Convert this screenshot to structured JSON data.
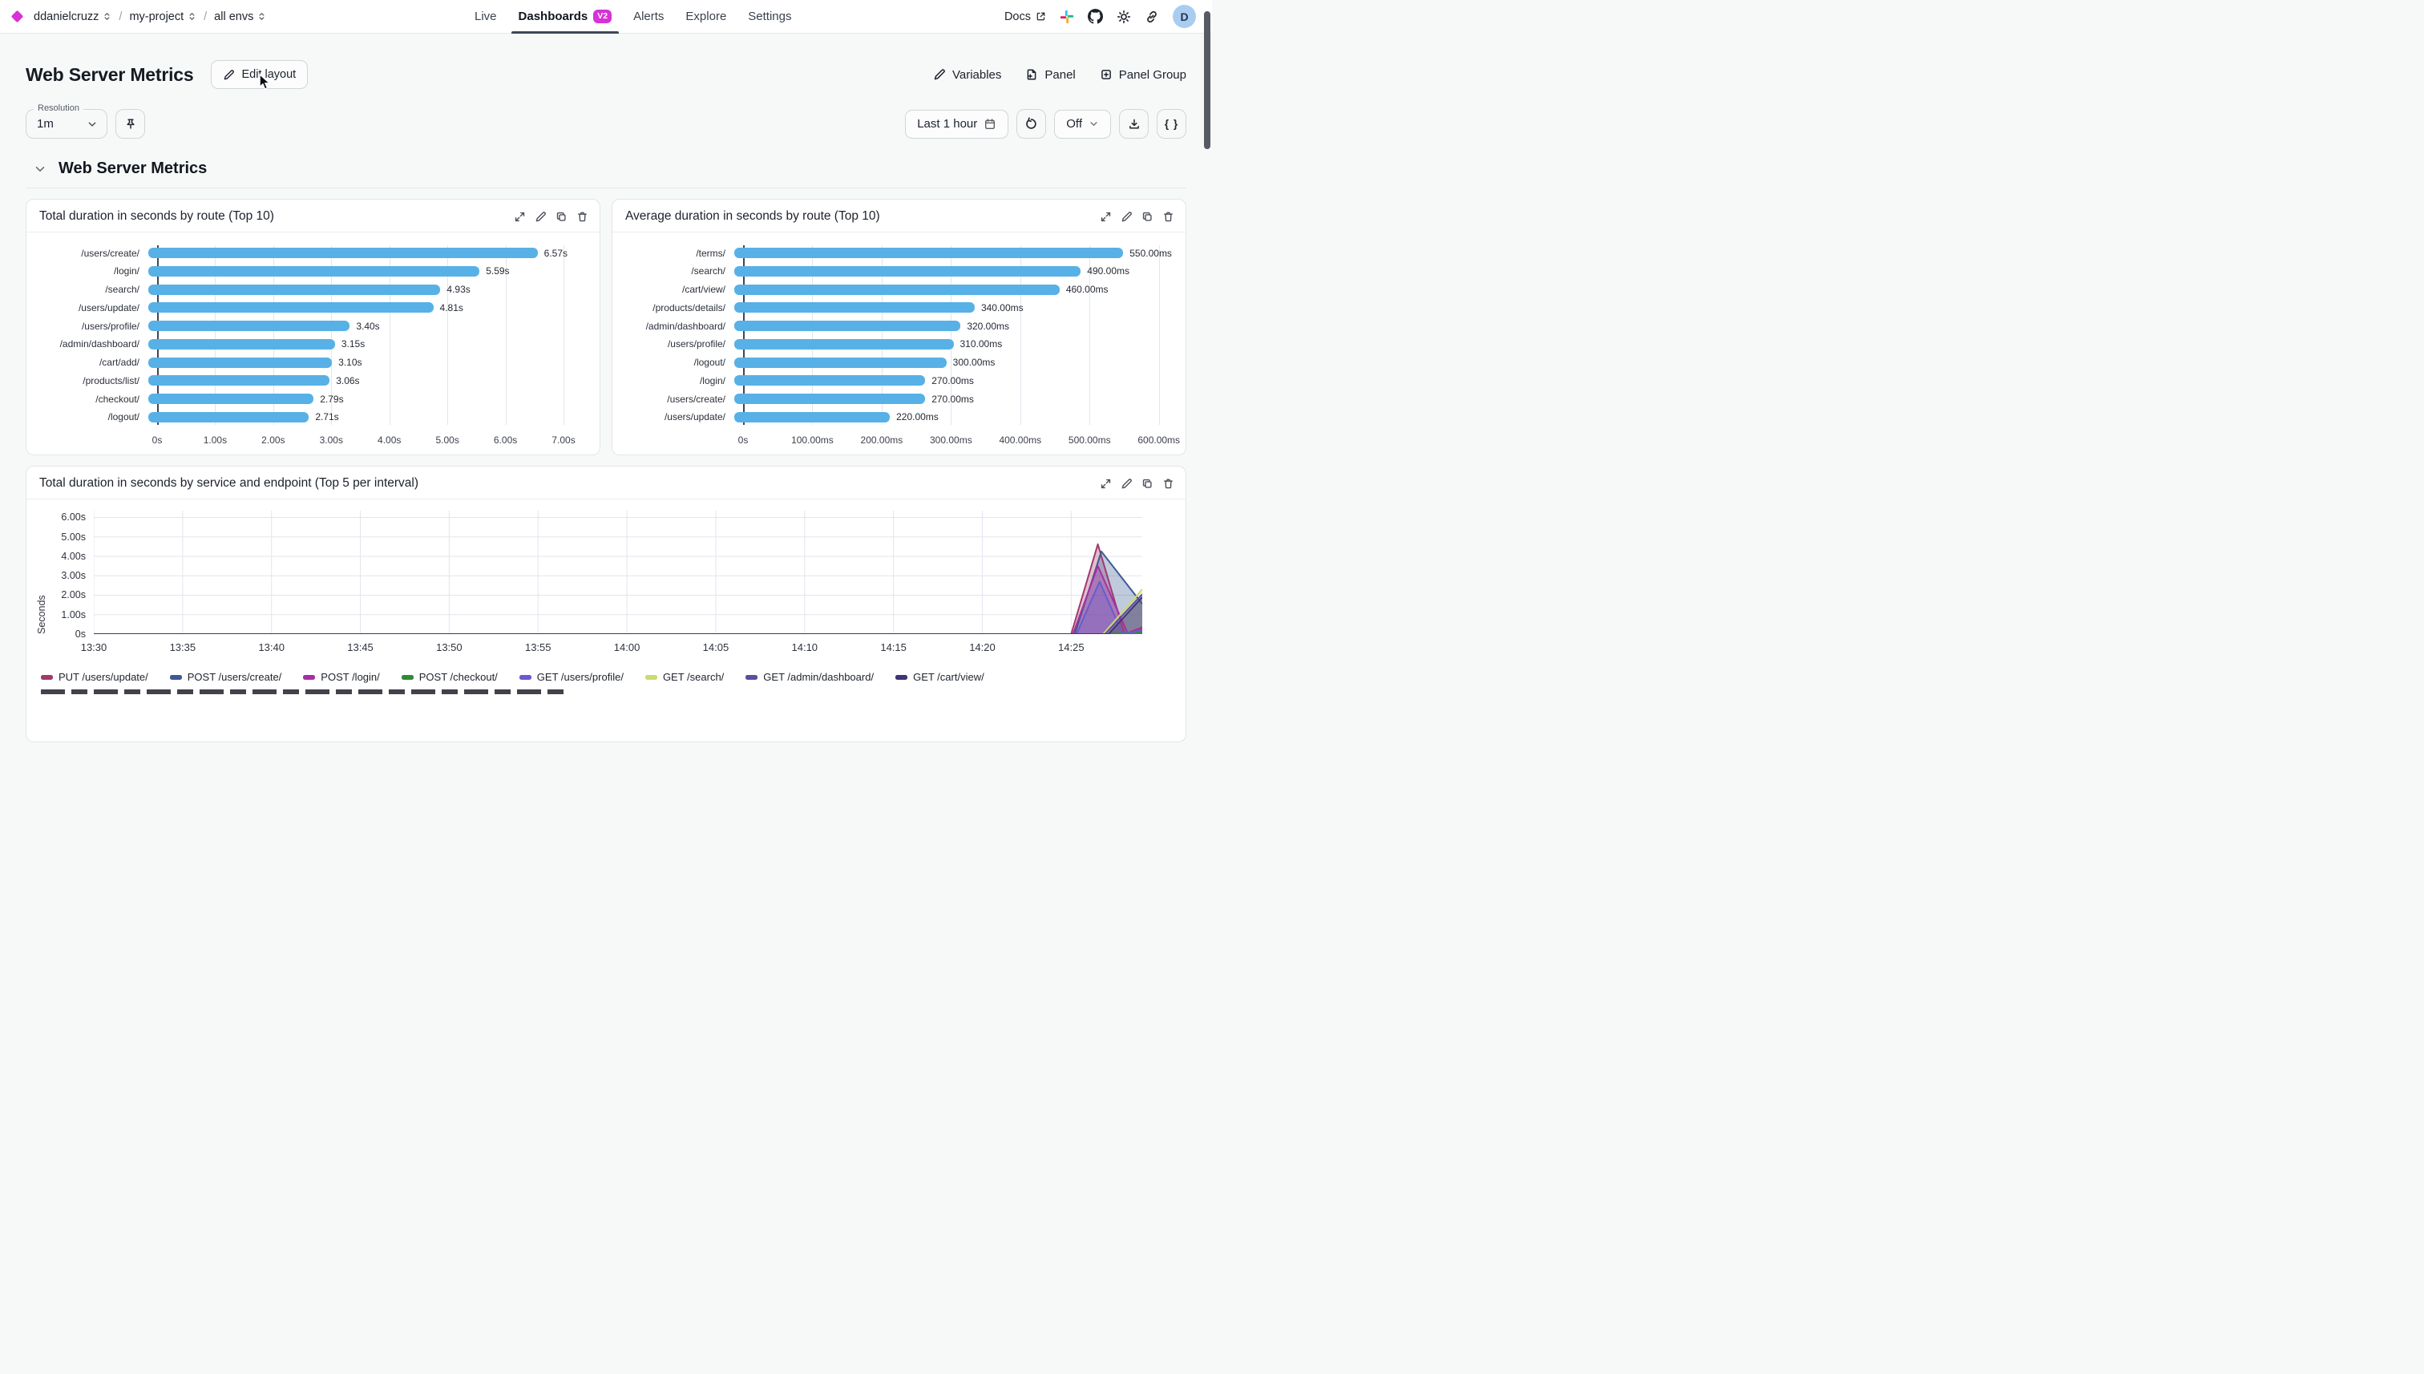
{
  "topnav": {
    "breadcrumb": [
      "ddanielcruzz",
      "my-project",
      "all envs"
    ],
    "tabs": [
      {
        "label": "Live",
        "active": false
      },
      {
        "label": "Dashboards",
        "active": true,
        "badge": "V2"
      },
      {
        "label": "Alerts",
        "active": false
      },
      {
        "label": "Explore",
        "active": false
      },
      {
        "label": "Settings",
        "active": false
      }
    ],
    "docs_label": "Docs",
    "avatar_initial": "D"
  },
  "header": {
    "title": "Web Server Metrics",
    "edit_layout_label": "Edit layout",
    "variables_label": "Variables",
    "panel_label": "Panel",
    "panel_group_label": "Panel Group"
  },
  "toolbar": {
    "resolution_label": "Resolution",
    "resolution_value": "1m",
    "time_range_label": "Last 1 hour",
    "auto_refresh_label": "Off",
    "braces_label": "{ }"
  },
  "section": {
    "title": "Web Server Metrics"
  },
  "colors": {
    "accent_magenta": "#d632d6",
    "bar_blue": "#57b1e6",
    "active_tab_underline": "#3e4756",
    "avatar_bg": "#a9cdf1"
  },
  "icons": [
    "diamond-logo",
    "selector-updown",
    "external-link",
    "slack",
    "github",
    "theme-sun",
    "share-link",
    "pencil",
    "file-plus",
    "square-plus",
    "pin",
    "calendar",
    "refresh",
    "chevron-down",
    "download",
    "braces",
    "expand",
    "edit",
    "duplicate",
    "delete",
    "cursor-arrow"
  ],
  "chart_data": [
    {
      "type": "bar",
      "orientation": "horizontal",
      "title": "Total duration in seconds by route (Top 10)",
      "categories": [
        "/users/create/",
        "/login/",
        "/search/",
        "/users/update/",
        "/users/profile/",
        "/admin/dashboard/",
        "/cart/add/",
        "/products/list/",
        "/checkout/",
        "/logout/"
      ],
      "values": [
        6.57,
        5.59,
        4.93,
        4.81,
        3.4,
        3.15,
        3.1,
        3.06,
        2.79,
        2.71
      ],
      "value_labels": [
        "6.57s",
        "5.59s",
        "4.93s",
        "4.81s",
        "3.40s",
        "3.15s",
        "3.10s",
        "3.06s",
        "2.79s",
        "2.71s"
      ],
      "xticks": [
        0,
        1,
        2,
        3,
        4,
        5,
        6,
        7
      ],
      "xtick_labels": [
        "0s",
        "1.00s",
        "2.00s",
        "3.00s",
        "4.00s",
        "5.00s",
        "6.00s",
        "7.00s"
      ],
      "xmax": 7.4,
      "bar_color": "#57b1e6",
      "grid": true
    },
    {
      "type": "bar",
      "orientation": "horizontal",
      "title": "Average duration in seconds by route (Top 10)",
      "categories": [
        "/terms/",
        "/search/",
        "/cart/view/",
        "/products/details/",
        "/admin/dashboard/",
        "/users/profile/",
        "/logout/",
        "/login/",
        "/users/create/",
        "/users/update/"
      ],
      "values": [
        550,
        490,
        460,
        340,
        320,
        310,
        300,
        270,
        270,
        220
      ],
      "value_labels": [
        "550.00ms",
        "490.00ms",
        "460.00ms",
        "340.00ms",
        "320.00ms",
        "310.00ms",
        "300.00ms",
        "270.00ms",
        "270.00ms",
        "220.00ms"
      ],
      "xticks": [
        0,
        100,
        200,
        300,
        400,
        500,
        600
      ],
      "xtick_labels": [
        "0s",
        "100.00ms",
        "200.00ms",
        "300.00ms",
        "400.00ms",
        "500.00ms",
        "600.00ms"
      ],
      "xmax": 620,
      "bar_color": "#57b1e6",
      "grid": true
    },
    {
      "type": "line",
      "title": "Total duration in seconds by service and endpoint (Top 5 per interval)",
      "ylabel": "Seconds",
      "yticks": [
        0,
        1,
        2,
        3,
        4,
        5,
        6
      ],
      "ytick_labels": [
        "0s",
        "1.00s",
        "2.00s",
        "3.00s",
        "4.00s",
        "5.00s",
        "6.00s"
      ],
      "ymax": 6.35,
      "xticks": [
        0,
        5,
        10,
        15,
        20,
        25,
        30,
        35,
        40,
        45,
        50,
        55
      ],
      "xtick_labels": [
        "13:30",
        "13:35",
        "13:40",
        "13:45",
        "13:50",
        "13:55",
        "14:00",
        "14:05",
        "14:10",
        "14:15",
        "14:20",
        "14:25"
      ],
      "xmax": 59,
      "grid": true,
      "legend_position": "bottom",
      "series": [
        {
          "name": "PUT /users/update/",
          "color": "#a13a6b",
          "points": [
            [
              0,
              0
            ],
            [
              55,
              0
            ],
            [
              56.5,
              4.62
            ],
            [
              58,
              0
            ],
            [
              59,
              0.35
            ]
          ]
        },
        {
          "name": "POST /users/create/",
          "color": "#3c5a94",
          "points": [
            [
              0,
              0
            ],
            [
              55.2,
              0
            ],
            [
              56.7,
              4.25
            ],
            [
              59,
              1.55
            ]
          ]
        },
        {
          "name": "POST /login/",
          "color": "#a62fa6",
          "points": [
            [
              0,
              0
            ],
            [
              55.1,
              0
            ],
            [
              56.5,
              3.5
            ],
            [
              58.2,
              0
            ],
            [
              59,
              0.3
            ]
          ]
        },
        {
          "name": "POST /checkout/",
          "color": "#2f8b34",
          "points": [
            [
              0,
              0
            ],
            [
              57,
              0
            ],
            [
              59,
              0.12
            ]
          ]
        },
        {
          "name": "GET /users/profile/",
          "color": "#6a5ad1",
          "points": [
            [
              0,
              0
            ],
            [
              55.3,
              0
            ],
            [
              56.6,
              2.7
            ],
            [
              57.9,
              0
            ],
            [
              59,
              0.2
            ]
          ]
        },
        {
          "name": "GET /search/",
          "color": "#cbdb70",
          "points": [
            [
              0,
              0
            ],
            [
              56.8,
              0
            ],
            [
              59,
              2.3
            ]
          ]
        },
        {
          "name": "GET /admin/dashboard/",
          "color": "#5f4da0",
          "points": [
            [
              0,
              0
            ],
            [
              56.9,
              0
            ],
            [
              59,
              2.05
            ]
          ]
        },
        {
          "name": "GET /cart/view/",
          "color": "#3c3576",
          "points": [
            [
              0,
              0
            ],
            [
              57.1,
              0
            ],
            [
              59,
              1.9
            ]
          ]
        }
      ]
    }
  ]
}
